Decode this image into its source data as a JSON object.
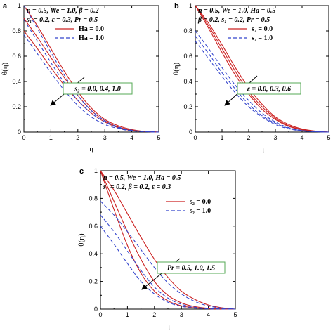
{
  "chart_data": [
    {
      "type": "line",
      "panel_label": "a",
      "xlabel": "η",
      "ylabel": "θ(η)",
      "xlim": [
        0,
        5
      ],
      "ylim": [
        0,
        1
      ],
      "xticks": [
        "0",
        "1",
        "2",
        "3",
        "4",
        "5"
      ],
      "yticks": [
        "0",
        "0.2",
        "0.4",
        "0.6",
        "0.8",
        "1"
      ],
      "params": [
        "n = 0.5, We = 1.0, β = 0.2",
        "s₁ = 0.2, ε = 0.3, Pr = 0.5"
      ],
      "legend": [
        {
          "label": "Ha = 0.0",
          "color": "#cc2222",
          "dash": "solid"
        },
        {
          "label": "Ha = 1.0",
          "color": "#3344cc",
          "dash": "dashed"
        }
      ],
      "annotation": "s₂ = 0.0, 0.4, 1.0",
      "series": [
        {
          "style": 0,
          "decay": 1.0,
          "x": [
            0,
            0.5,
            1,
            1.5,
            2,
            2.5,
            3,
            3.5,
            4,
            4.5,
            5
          ],
          "y": [
            1.0,
            0.84,
            0.66,
            0.48,
            0.32,
            0.19,
            0.1,
            0.05,
            0.02,
            0.005,
            0.0
          ]
        },
        {
          "style": 0,
          "decay": 1.0,
          "x": [
            0,
            0.5,
            1,
            1.5,
            2,
            2.5,
            3,
            3.5,
            4,
            4.5,
            5
          ],
          "y": [
            0.9,
            0.75,
            0.59,
            0.43,
            0.29,
            0.17,
            0.09,
            0.04,
            0.015,
            0.005,
            0.0
          ]
        },
        {
          "style": 0,
          "decay": 1.0,
          "x": [
            0,
            0.5,
            1,
            1.5,
            2,
            2.5,
            3,
            3.5,
            4,
            4.5,
            5
          ],
          "y": [
            0.8,
            0.66,
            0.51,
            0.37,
            0.25,
            0.15,
            0.08,
            0.035,
            0.012,
            0.004,
            0.0
          ]
        },
        {
          "style": 1,
          "decay": 1.0,
          "x": [
            0,
            0.5,
            1,
            1.5,
            2,
            2.5,
            3,
            3.5,
            4,
            4.5,
            5
          ],
          "y": [
            1.0,
            0.82,
            0.63,
            0.45,
            0.29,
            0.17,
            0.09,
            0.04,
            0.015,
            0.004,
            0.0
          ]
        },
        {
          "style": 1,
          "decay": 1.0,
          "x": [
            0,
            0.5,
            1,
            1.5,
            2,
            2.5,
            3,
            3.5,
            4,
            4.5,
            5
          ],
          "y": [
            0.89,
            0.72,
            0.55,
            0.39,
            0.25,
            0.15,
            0.08,
            0.035,
            0.012,
            0.004,
            0.0
          ]
        },
        {
          "style": 1,
          "decay": 1.0,
          "x": [
            0,
            0.5,
            1,
            1.5,
            2,
            2.5,
            3,
            3.5,
            4,
            4.5,
            5
          ],
          "y": [
            0.77,
            0.62,
            0.47,
            0.33,
            0.21,
            0.12,
            0.06,
            0.028,
            0.01,
            0.003,
            0.0
          ]
        }
      ]
    },
    {
      "type": "line",
      "panel_label": "b",
      "xlabel": "η",
      "ylabel": "θ(η)",
      "xlim": [
        0,
        5
      ],
      "ylim": [
        0,
        1
      ],
      "xticks": [
        "0",
        "1",
        "2",
        "3",
        "4",
        "5"
      ],
      "yticks": [
        "0",
        "0.2",
        "0.4",
        "0.6",
        "0.8",
        "1"
      ],
      "params": [
        "n = 0.5, We = 1.0, Ha = 0.5",
        "β = 0.2, s₁ = 0.2, Pr = 0.5"
      ],
      "legend": [
        {
          "label": "s₂ = 0.0",
          "color": "#cc2222",
          "dash": "solid"
        },
        {
          "label": "s₂ = 1.0",
          "color": "#3344cc",
          "dash": "dashed"
        }
      ],
      "annotation": "ε = 0.0, 0.3, 0.6",
      "series": [
        {
          "style": 0,
          "x": [
            0,
            0.5,
            1,
            1.5,
            2,
            2.5,
            3,
            3.5,
            4,
            4.5,
            5
          ],
          "y": [
            1.0,
            0.86,
            0.69,
            0.51,
            0.35,
            0.22,
            0.12,
            0.06,
            0.025,
            0.008,
            0.0
          ]
        },
        {
          "style": 0,
          "x": [
            0,
            0.5,
            1,
            1.5,
            2,
            2.5,
            3,
            3.5,
            4,
            4.5,
            5
          ],
          "y": [
            1.0,
            0.84,
            0.66,
            0.48,
            0.32,
            0.2,
            0.11,
            0.05,
            0.02,
            0.006,
            0.0
          ]
        },
        {
          "style": 0,
          "x": [
            0,
            0.5,
            1,
            1.5,
            2,
            2.5,
            3,
            3.5,
            4,
            4.5,
            5
          ],
          "y": [
            1.0,
            0.82,
            0.63,
            0.45,
            0.3,
            0.18,
            0.1,
            0.045,
            0.018,
            0.005,
            0.0
          ]
        },
        {
          "style": 1,
          "x": [
            0,
            0.5,
            1,
            1.5,
            2,
            2.5,
            3,
            3.5,
            4,
            4.5,
            5
          ],
          "y": [
            0.8,
            0.66,
            0.51,
            0.37,
            0.25,
            0.15,
            0.08,
            0.035,
            0.013,
            0.004,
            0.0
          ]
        },
        {
          "style": 1,
          "x": [
            0,
            0.5,
            1,
            1.5,
            2,
            2.5,
            3,
            3.5,
            4,
            4.5,
            5
          ],
          "y": [
            0.76,
            0.62,
            0.47,
            0.34,
            0.22,
            0.13,
            0.07,
            0.03,
            0.011,
            0.003,
            0.0
          ]
        },
        {
          "style": 1,
          "x": [
            0,
            0.5,
            1,
            1.5,
            2,
            2.5,
            3,
            3.5,
            4,
            4.5,
            5
          ],
          "y": [
            0.72,
            0.58,
            0.44,
            0.31,
            0.2,
            0.12,
            0.06,
            0.026,
            0.009,
            0.003,
            0.0
          ]
        }
      ]
    },
    {
      "type": "line",
      "panel_label": "c",
      "xlabel": "η",
      "ylabel": "θ(η)",
      "xlim": [
        0,
        5
      ],
      "ylim": [
        0,
        1
      ],
      "xticks": [
        "0",
        "1",
        "2",
        "3",
        "4",
        "5"
      ],
      "yticks": [
        "0",
        "0.2",
        "0.4",
        "0.6",
        "0.8",
        "1"
      ],
      "params": [
        "n = 0.5, We = 1.0, Ha = 0.5",
        "s₁ = 0.2, β = 0.2, ε = 0.3"
      ],
      "legend": [
        {
          "label": "s₂ = 0.0",
          "color": "#cc2222",
          "dash": "solid"
        },
        {
          "label": "s₂ = 1.0",
          "color": "#3344cc",
          "dash": "dashed"
        }
      ],
      "annotation": "Pr = 0.5, 1.0, 1.5",
      "series": [
        {
          "style": 0,
          "x": [
            0,
            0.5,
            1,
            1.5,
            2,
            2.5,
            3,
            3.5,
            4,
            4.5,
            5
          ],
          "y": [
            1.0,
            0.86,
            0.69,
            0.52,
            0.36,
            0.23,
            0.13,
            0.07,
            0.03,
            0.01,
            0.0
          ]
        },
        {
          "style": 0,
          "x": [
            0,
            0.5,
            1,
            1.5,
            2,
            2.5,
            3,
            3.5,
            4,
            4.5,
            5
          ],
          "y": [
            1.0,
            0.78,
            0.56,
            0.36,
            0.2,
            0.1,
            0.045,
            0.018,
            0.006,
            0.002,
            0.0
          ]
        },
        {
          "style": 0,
          "x": [
            0,
            0.5,
            1,
            1.5,
            2,
            2.5,
            3,
            3.5,
            4,
            4.5,
            5
          ],
          "y": [
            1.0,
            0.72,
            0.46,
            0.26,
            0.13,
            0.06,
            0.024,
            0.009,
            0.003,
            0.001,
            0.0
          ]
        },
        {
          "style": 1,
          "x": [
            0,
            0.5,
            1,
            1.5,
            2,
            2.5,
            3,
            3.5,
            4,
            4.5,
            5
          ],
          "y": [
            0.78,
            0.68,
            0.56,
            0.43,
            0.3,
            0.19,
            0.11,
            0.055,
            0.023,
            0.008,
            0.0
          ]
        },
        {
          "style": 1,
          "x": [
            0,
            0.5,
            1,
            1.5,
            2,
            2.5,
            3,
            3.5,
            4,
            4.5,
            5
          ],
          "y": [
            0.68,
            0.56,
            0.42,
            0.28,
            0.16,
            0.08,
            0.035,
            0.014,
            0.005,
            0.002,
            0.0
          ]
        },
        {
          "style": 1,
          "x": [
            0,
            0.5,
            1,
            1.5,
            2,
            2.5,
            3,
            3.5,
            4,
            4.5,
            5
          ],
          "y": [
            0.6,
            0.47,
            0.33,
            0.2,
            0.11,
            0.05,
            0.02,
            0.007,
            0.002,
            0.001,
            0.0
          ]
        }
      ]
    }
  ]
}
